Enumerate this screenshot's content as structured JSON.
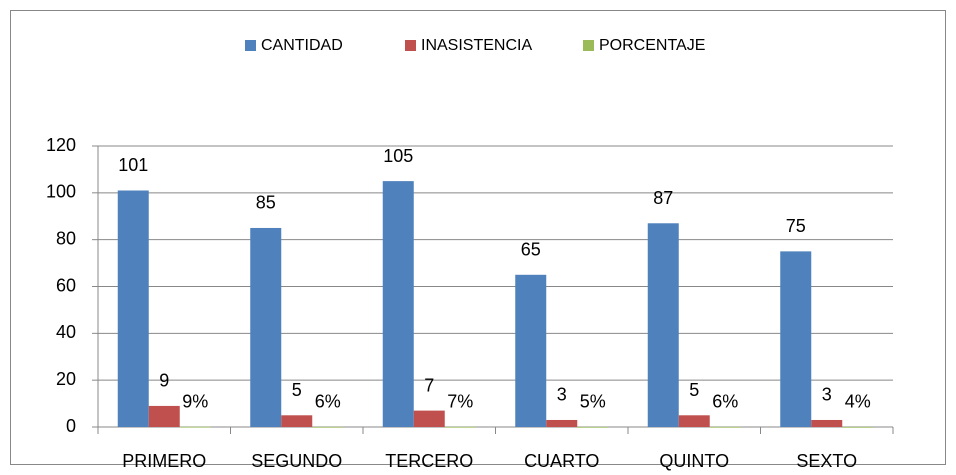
{
  "chart_data": {
    "type": "bar",
    "categories": [
      "PRIMERO",
      "SEGUNDO",
      "TERCERO",
      "CUARTO",
      "QUINTO",
      "SEXTO"
    ],
    "series": [
      {
        "name": "CANTIDAD",
        "color": "#4f81bd",
        "values": [
          101,
          85,
          105,
          65,
          87,
          75
        ]
      },
      {
        "name": "INASISTENCIA",
        "color": "#c0504d",
        "values": [
          9,
          5,
          7,
          3,
          5,
          3
        ]
      },
      {
        "name": "PORCENTAJE",
        "color": "#9bbb59",
        "values": [
          0.09,
          0.06,
          0.07,
          0.05,
          0.06,
          0.04
        ],
        "value_labels": [
          "9%",
          "6%",
          "7%",
          "5%",
          "6%",
          "4%"
        ]
      }
    ],
    "ylim": [
      0,
      120
    ],
    "yticks": [
      0,
      20,
      40,
      60,
      80,
      100,
      120
    ],
    "grid": true,
    "legend": "top"
  }
}
